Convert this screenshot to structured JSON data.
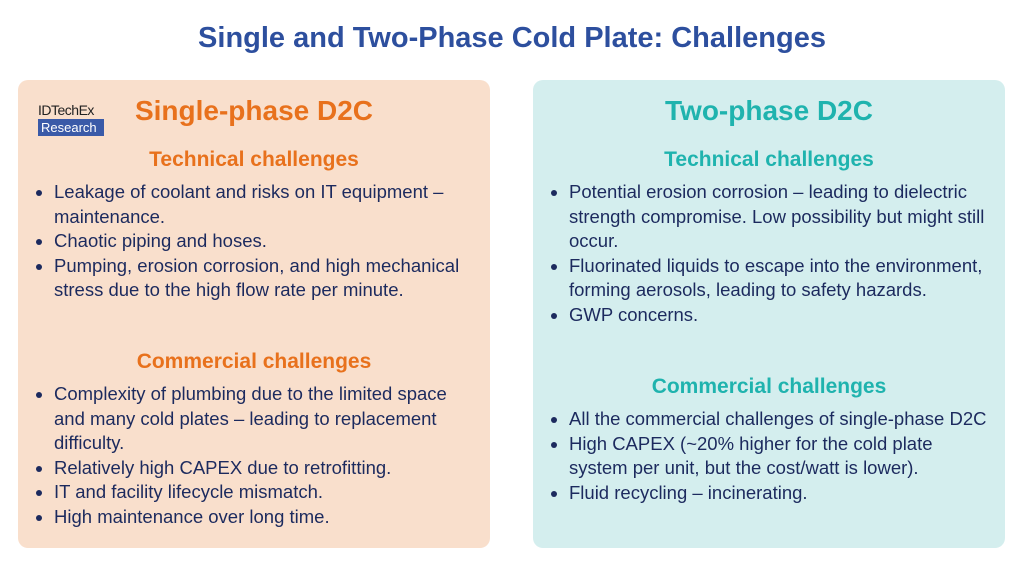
{
  "title": "Single and Two-Phase Cold Plate: Challenges",
  "logo": {
    "line1": "IDTechEx",
    "line2": "Research"
  },
  "left": {
    "heading": "Single-phase D2C",
    "technical_title": "Technical challenges",
    "technical": [
      "Leakage of coolant and risks on IT equipment – maintenance.",
      "Chaotic piping and hoses.",
      "Pumping, erosion corrosion, and high mechanical stress due to the high flow rate per minute."
    ],
    "commercial_title": "Commercial challenges",
    "commercial": [
      "Complexity of plumbing due to the limited space and many cold plates – leading to replacement difficulty.",
      "Relatively high CAPEX due to retrofitting.",
      "IT and facility lifecycle mismatch.",
      "High maintenance over long time."
    ]
  },
  "right": {
    "heading": "Two-phase D2C",
    "technical_title": "Technical challenges",
    "technical": [
      "Potential erosion corrosion – leading to dielectric strength compromise. Low possibility but might still occur.",
      "Fluorinated liquids to escape into the environment, forming aerosols, leading to safety hazards.",
      "GWP concerns."
    ],
    "commercial_title": "Commercial challenges",
    "commercial": [
      "All the commercial challenges of single-phase D2C",
      "High CAPEX (~20% higher for the cold plate system per unit, but the cost/watt is lower).",
      "Fluid recycling – incinerating."
    ]
  },
  "colors": {
    "orange": "#e8711c",
    "teal": "#1fb3ae",
    "navy": "#1c2a5e",
    "left_bg": "#f9dfcc",
    "right_bg": "#d4eeee"
  }
}
